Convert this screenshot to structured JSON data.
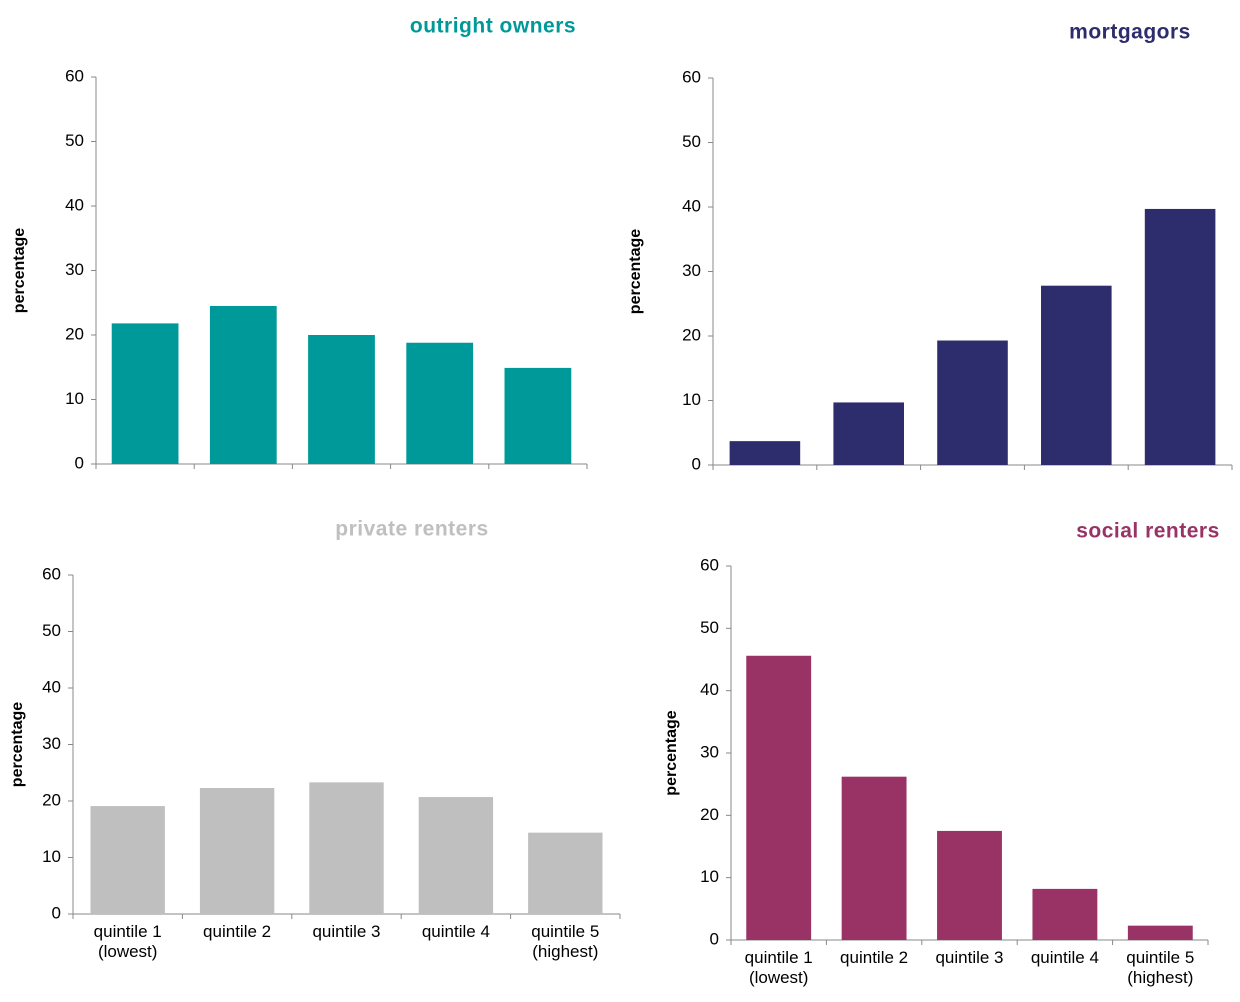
{
  "chart_data": [
    {
      "type": "bar",
      "title": "outright owners",
      "ylabel": "percentage",
      "categories": [
        null,
        null,
        null,
        null,
        null
      ],
      "values": [
        21.8,
        24.5,
        20,
        18.8,
        14.9
      ],
      "color": "#009999",
      "ylim": [
        0,
        60
      ],
      "yticks": [
        0,
        10,
        20,
        30,
        40,
        50,
        60
      ]
    },
    {
      "type": "bar",
      "title": "mortgagors",
      "ylabel": "percentage",
      "categories": [
        null,
        null,
        null,
        null,
        null
      ],
      "values": [
        3.7,
        9.7,
        19.3,
        27.8,
        39.7
      ],
      "color": "#2d2d6e",
      "ylim": [
        0,
        60
      ],
      "yticks": [
        0,
        10,
        20,
        30,
        40,
        50,
        60
      ]
    },
    {
      "type": "bar",
      "title": "private renters",
      "ylabel": "percentage",
      "categories": [
        "quintile 1 (lowest)",
        "quintile 2",
        "quintile 3",
        "quintile 4",
        "quintile 5 (highest)"
      ],
      "values": [
        19.1,
        22.3,
        23.3,
        20.7,
        14.4
      ],
      "color": "#bfbfbf",
      "ylim": [
        0,
        60
      ],
      "yticks": [
        0,
        10,
        20,
        30,
        40,
        50,
        60
      ]
    },
    {
      "type": "bar",
      "title": "social renters",
      "ylabel": "percentage",
      "categories": [
        "quintile 1 (lowest)",
        "quintile 2",
        "quintile 3",
        "quintile 4",
        "quintile 5 (highest)"
      ],
      "values": [
        45.6,
        26.2,
        17.5,
        8.2,
        2.3
      ],
      "color": "#993366",
      "ylim": [
        0,
        60
      ],
      "yticks": [
        0,
        10,
        20,
        30,
        40,
        50,
        60
      ]
    }
  ]
}
